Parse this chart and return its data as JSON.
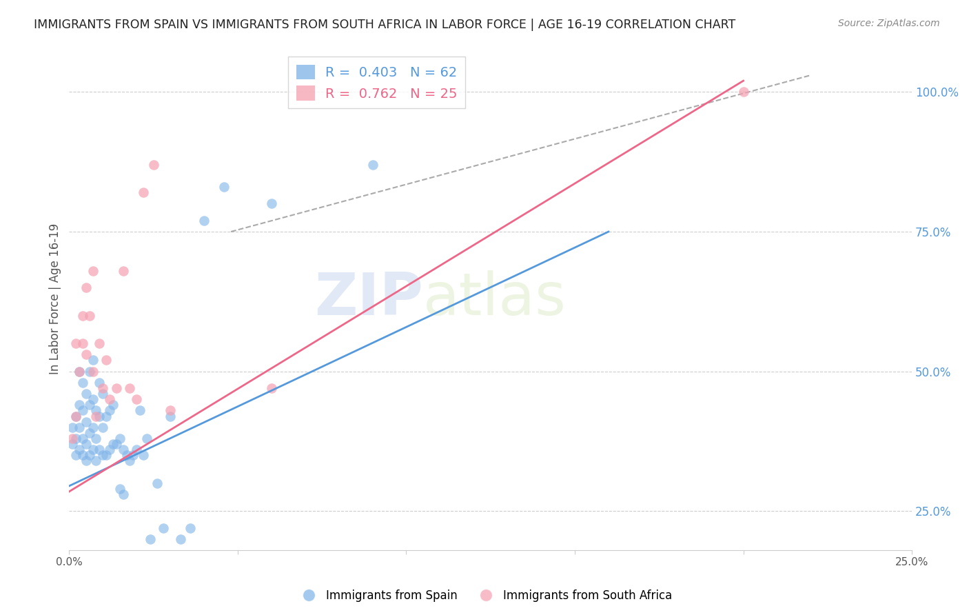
{
  "title": "IMMIGRANTS FROM SPAIN VS IMMIGRANTS FROM SOUTH AFRICA IN LABOR FORCE | AGE 16-19 CORRELATION CHART",
  "source": "Source: ZipAtlas.com",
  "ylabel": "In Labor Force | Age 16-19",
  "xlim": [
    0.0,
    0.25
  ],
  "ylim": [
    0.18,
    1.08
  ],
  "xticks": [
    0.0,
    0.05,
    0.1,
    0.15,
    0.2,
    0.25
  ],
  "xticklabels": [
    "0.0%",
    "",
    "",
    "",
    "",
    "25.0%"
  ],
  "yticks_right": [
    0.25,
    0.5,
    0.75,
    1.0
  ],
  "yticklabels_right": [
    "25.0%",
    "50.0%",
    "75.0%",
    "100.0%"
  ],
  "blue_color": "#7EB3E8",
  "pink_color": "#F5A0B0",
  "blue_line_color": "#5599DD",
  "pink_line_color": "#EE6688",
  "blue_label": "Immigrants from Spain",
  "pink_label": "Immigrants from South Africa",
  "blue_R": "0.403",
  "blue_N": "62",
  "pink_R": "0.762",
  "pink_N": "25",
  "watermark_zip": "ZIP",
  "watermark_atlas": "atlas",
  "grid_color": "#CCCCCC",
  "right_tick_color": "#5599DD",
  "blue_scatter_x": [
    0.001,
    0.001,
    0.002,
    0.002,
    0.002,
    0.003,
    0.003,
    0.003,
    0.003,
    0.004,
    0.004,
    0.004,
    0.004,
    0.005,
    0.005,
    0.005,
    0.005,
    0.006,
    0.006,
    0.006,
    0.006,
    0.007,
    0.007,
    0.007,
    0.007,
    0.008,
    0.008,
    0.008,
    0.009,
    0.009,
    0.009,
    0.01,
    0.01,
    0.01,
    0.011,
    0.011,
    0.012,
    0.012,
    0.013,
    0.013,
    0.014,
    0.015,
    0.015,
    0.016,
    0.016,
    0.017,
    0.018,
    0.019,
    0.02,
    0.021,
    0.022,
    0.023,
    0.024,
    0.026,
    0.028,
    0.03,
    0.033,
    0.036,
    0.04,
    0.046,
    0.06,
    0.09
  ],
  "blue_scatter_y": [
    0.37,
    0.4,
    0.35,
    0.38,
    0.42,
    0.36,
    0.4,
    0.44,
    0.5,
    0.35,
    0.38,
    0.43,
    0.48,
    0.34,
    0.37,
    0.41,
    0.46,
    0.35,
    0.39,
    0.44,
    0.5,
    0.36,
    0.4,
    0.45,
    0.52,
    0.34,
    0.38,
    0.43,
    0.36,
    0.42,
    0.48,
    0.35,
    0.4,
    0.46,
    0.35,
    0.42,
    0.36,
    0.43,
    0.37,
    0.44,
    0.37,
    0.29,
    0.38,
    0.28,
    0.36,
    0.35,
    0.34,
    0.35,
    0.36,
    0.43,
    0.35,
    0.38,
    0.2,
    0.3,
    0.22,
    0.42,
    0.2,
    0.22,
    0.77,
    0.83,
    0.8,
    0.87
  ],
  "pink_scatter_x": [
    0.001,
    0.002,
    0.002,
    0.003,
    0.004,
    0.004,
    0.005,
    0.005,
    0.006,
    0.007,
    0.007,
    0.008,
    0.009,
    0.01,
    0.011,
    0.012,
    0.014,
    0.016,
    0.018,
    0.02,
    0.022,
    0.025,
    0.03,
    0.06,
    0.2
  ],
  "pink_scatter_y": [
    0.38,
    0.42,
    0.55,
    0.5,
    0.55,
    0.6,
    0.53,
    0.65,
    0.6,
    0.5,
    0.68,
    0.42,
    0.55,
    0.47,
    0.52,
    0.45,
    0.47,
    0.68,
    0.47,
    0.45,
    0.82,
    0.87,
    0.43,
    0.47,
    1.0
  ],
  "blue_line_x": [
    0.0,
    0.16
  ],
  "blue_line_y": [
    0.295,
    0.75
  ],
  "pink_line_x": [
    0.0,
    0.2
  ],
  "pink_line_y": [
    0.285,
    1.02
  ],
  "diag_line_x": [
    0.048,
    0.22
  ],
  "diag_line_y": [
    0.75,
    1.03
  ]
}
